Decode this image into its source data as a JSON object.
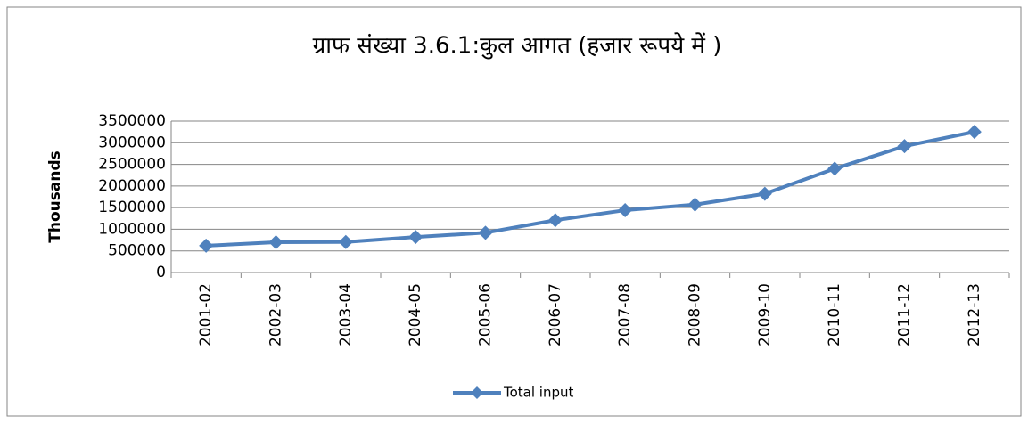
{
  "chart_data": {
    "type": "line",
    "title": "ग्राफ संख्या 3.6.1:कुल आगत (हजार रूपये में )",
    "y_label": "Thousands",
    "categories": [
      "2001-02",
      "2002-03",
      "2003-04",
      "2004-05",
      "2005-06",
      "2006-07",
      "2007-08",
      "2008-09",
      "2009-10",
      "2010-11",
      "2011-12",
      "2012-13"
    ],
    "series": [
      {
        "name": "Total input",
        "color": "#4f81bd",
        "values": [
          620000,
          700000,
          705000,
          820000,
          920000,
          1210000,
          1440000,
          1570000,
          1820000,
          2400000,
          2920000,
          3250000
        ]
      }
    ],
    "ylim": [
      0,
      3500000
    ],
    "yticks": [
      0,
      500000,
      1000000,
      1500000,
      2000000,
      2500000,
      3000000,
      3500000
    ],
    "grid": true,
    "legend": "bottom"
  }
}
